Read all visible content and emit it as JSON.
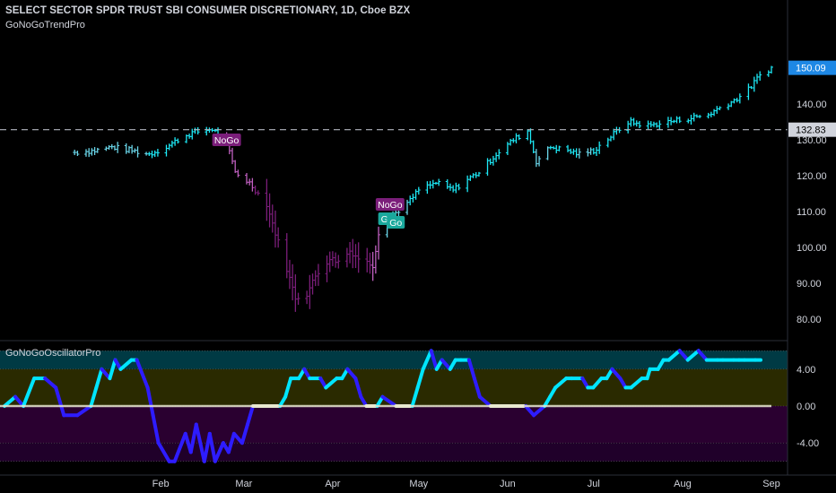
{
  "header": {
    "title": "SELECT SECTOR SPDR TRUST SBI CONSUMER DISCRETIONARY, 1D, Cboe BZX",
    "trend_indicator": "GoNoGoTrendPro",
    "oscillator_indicator": "GoNoGoOscillatorPro"
  },
  "colors": {
    "background": "#000000",
    "go_strong": "#1de9f6",
    "go_weak": "#6ad5e8",
    "nogo_strong": "#7b1e7a",
    "nogo_weak": "#c060c0",
    "neutral": "#f2f2d0",
    "osc_go": "#00e5ff",
    "osc_nogo": "#2e1cff",
    "osc_neutral": "#e8e8d0",
    "label_go": "#1aa89c",
    "label_nogo": "#7b1e7a",
    "last_price_box": "#1e88e5"
  },
  "chart_data": [
    {
      "type": "line",
      "subtype": "ohlc-bars",
      "title": "SELECT SECTOR SPDR TRUST SBI CONSUMER DISCRETIONARY, 1D, Cboe BZX",
      "xlabel": "",
      "ylabel": "",
      "x_tick_labels": [
        "Feb",
        "Mar",
        "Apr",
        "May",
        "Jun",
        "Jul",
        "Aug",
        "Sep"
      ],
      "y_ticks": [
        80,
        90,
        100,
        110,
        120,
        130,
        140
      ],
      "y_tick_labels": [
        "80.00",
        "90.00",
        "100.00",
        "110.00",
        "120.00",
        "130.00",
        "140.00"
      ],
      "ylim": [
        75,
        159
      ],
      "grid": false,
      "reference_line": {
        "value": 132.83,
        "label": "132.83",
        "style": "dashed"
      },
      "last_price": {
        "value": 150.09,
        "label": "150.09"
      },
      "signal_labels": [
        {
          "text": "NoGo",
          "date": "2020-02-24",
          "price": 130
        },
        {
          "text": "NoGo",
          "date": "2020-04-21",
          "price": 112
        },
        {
          "text": "Go",
          "date": "2020-04-20",
          "price": 108
        },
        {
          "text": "Go",
          "date": "2020-04-23",
          "price": 107
        }
      ],
      "series": [
        {
          "kind": "close_path",
          "points": [
            [
              "2020-01-02",
              126.5
            ],
            [
              "2020-01-09",
              127.0
            ],
            [
              "2020-01-15",
              128.0
            ],
            [
              "2020-01-22",
              127.0
            ],
            [
              "2020-01-28",
              126.0
            ],
            [
              "2020-02-03",
              128.0
            ],
            [
              "2020-02-07",
              130.0
            ],
            [
              "2020-02-12",
              132.0
            ],
            [
              "2020-02-19",
              133.0
            ],
            [
              "2020-02-24",
              129.0
            ],
            [
              "2020-02-27",
              121.0
            ],
            [
              "2020-03-03",
              118.0
            ],
            [
              "2020-03-09",
              112.0
            ],
            [
              "2020-03-12",
              104.0
            ],
            [
              "2020-03-16",
              94.0
            ],
            [
              "2020-03-19",
              86.0
            ],
            [
              "2020-03-23",
              87.0
            ],
            [
              "2020-03-26",
              92.0
            ],
            [
              "2020-03-31",
              97.0
            ],
            [
              "2020-04-03",
              96.0
            ],
            [
              "2020-04-07",
              99.0
            ],
            [
              "2020-04-10",
              97.0
            ],
            [
              "2020-04-15",
              95.0
            ],
            [
              "2020-04-17",
              104.0
            ],
            [
              "2020-04-22",
              109.0
            ],
            [
              "2020-04-28",
              113.0
            ],
            [
              "2020-05-01",
              116.0
            ],
            [
              "2020-05-07",
              118.0
            ],
            [
              "2020-05-13",
              116.0
            ],
            [
              "2020-05-18",
              119.0
            ],
            [
              "2020-05-22",
              121.0
            ],
            [
              "2020-05-28",
              126.0
            ],
            [
              "2020-06-03",
              130.0
            ],
            [
              "2020-06-08",
              132.5
            ],
            [
              "2020-06-11",
              124.0
            ],
            [
              "2020-06-16",
              128.0
            ],
            [
              "2020-06-22",
              127.0
            ],
            [
              "2020-06-26",
              126.0
            ],
            [
              "2020-07-01",
              127.0
            ],
            [
              "2020-07-07",
              131.0
            ],
            [
              "2020-07-13",
              135.0
            ],
            [
              "2020-07-20",
              134.0
            ],
            [
              "2020-07-27",
              135.0
            ],
            [
              "2020-08-03",
              136.0
            ],
            [
              "2020-08-10",
              137.0
            ],
            [
              "2020-08-14",
              139.0
            ],
            [
              "2020-08-19",
              141.0
            ],
            [
              "2020-08-24",
              144.0
            ],
            [
              "2020-08-28",
              148.0
            ],
            [
              "2020-09-01",
              150.09
            ]
          ],
          "colors_by_date": [
            [
              "2020-01-02",
              "go_weak"
            ],
            [
              "2020-01-28",
              "go_strong"
            ],
            [
              "2020-02-24",
              "nogo_weak"
            ],
            [
              "2020-03-05",
              "nogo_strong"
            ],
            [
              "2020-04-15",
              "nogo_weak"
            ],
            [
              "2020-04-20",
              "go_weak"
            ],
            [
              "2020-04-28",
              "go_strong"
            ],
            [
              "2020-06-11",
              "go_weak"
            ],
            [
              "2020-06-16",
              "go_strong"
            ],
            [
              "2020-06-26",
              "go_weak"
            ],
            [
              "2020-07-01",
              "go_strong"
            ]
          ]
        }
      ]
    },
    {
      "type": "line",
      "title": "GoNoGoOscillatorPro",
      "xlabel": "",
      "ylabel": "",
      "y_ticks": [
        -4,
        0,
        4
      ],
      "y_tick_labels": [
        "-4.00",
        "0.00",
        "4.00"
      ],
      "ylim": [
        -7,
        7
      ],
      "grid": false,
      "zones": [
        {
          "from": 4,
          "to": 6,
          "color": "#003a44"
        },
        {
          "from": 0,
          "to": 4,
          "color": "#2a2a00"
        },
        {
          "from": -4,
          "to": 0,
          "color": "#2a0030"
        },
        {
          "from": -6,
          "to": -4,
          "color": "#20002a"
        }
      ],
      "series": [
        {
          "name": "",
          "values": [
            [
              "2020-01-02",
              0
            ],
            [
              "2020-01-06",
              1
            ],
            [
              "2020-01-09",
              0
            ],
            [
              "2020-01-13",
              3
            ],
            [
              "2020-01-17",
              3
            ],
            [
              "2020-01-21",
              2
            ],
            [
              "2020-01-24",
              -1
            ],
            [
              "2020-01-29",
              -1
            ],
            [
              "2020-02-03",
              0
            ],
            [
              "2020-02-05",
              2
            ],
            [
              "2020-02-07",
              4
            ],
            [
              "2020-02-10",
              3
            ],
            [
              "2020-02-12",
              5
            ],
            [
              "2020-02-14",
              4
            ],
            [
              "2020-02-18",
              5
            ],
            [
              "2020-02-20",
              5
            ],
            [
              "2020-02-24",
              2
            ],
            [
              "2020-02-26",
              -1
            ],
            [
              "2020-02-28",
              -4
            ],
            [
              "2020-03-03",
              -6
            ],
            [
              "2020-03-05",
              -6
            ],
            [
              "2020-03-09",
              -3
            ],
            [
              "2020-03-11",
              -5
            ],
            [
              "2020-03-13",
              -2
            ],
            [
              "2020-03-16",
              -6
            ],
            [
              "2020-03-18",
              -3
            ],
            [
              "2020-03-20",
              -6
            ],
            [
              "2020-03-23",
              -4
            ],
            [
              "2020-03-25",
              -5
            ],
            [
              "2020-03-27",
              -3
            ],
            [
              "2020-03-30",
              -4
            ],
            [
              "2020-04-01",
              -2
            ],
            [
              "2020-04-03",
              0
            ],
            [
              "2020-04-07",
              0
            ],
            [
              "2020-04-13",
              0
            ],
            [
              "2020-04-15",
              1
            ],
            [
              "2020-04-17",
              3
            ],
            [
              "2020-04-20",
              3
            ],
            [
              "2020-04-22",
              4
            ],
            [
              "2020-04-24",
              3
            ],
            [
              "2020-04-28",
              3
            ],
            [
              "2020-04-30",
              2
            ],
            [
              "2020-05-04",
              3
            ],
            [
              "2020-05-06",
              3
            ],
            [
              "2020-05-08",
              4
            ],
            [
              "2020-05-11",
              3
            ],
            [
              "2020-05-13",
              1
            ],
            [
              "2020-05-15",
              0
            ],
            [
              "2020-05-19",
              0
            ],
            [
              "2020-05-21",
              1
            ],
            [
              "2020-05-26",
              0
            ],
            [
              "2020-05-28",
              0
            ],
            [
              "2020-06-01",
              0
            ],
            [
              "2020-06-03",
              2
            ],
            [
              "2020-06-05",
              4
            ],
            [
              "2020-06-08",
              6
            ],
            [
              "2020-06-10",
              4
            ],
            [
              "2020-06-12",
              5
            ],
            [
              "2020-06-15",
              4
            ],
            [
              "2020-06-17",
              5
            ],
            [
              "2020-06-19",
              5
            ],
            [
              "2020-06-22",
              5
            ],
            [
              "2020-06-24",
              3
            ],
            [
              "2020-06-26",
              1
            ],
            [
              "2020-06-30",
              0
            ],
            [
              "2020-07-02",
              0
            ],
            [
              "2020-07-07",
              0
            ],
            [
              "2020-07-13",
              0
            ],
            [
              "2020-07-16",
              -1
            ],
            [
              "2020-07-20",
              0
            ],
            [
              "2020-07-22",
              1
            ],
            [
              "2020-07-24",
              2
            ],
            [
              "2020-07-28",
              3
            ],
            [
              "2020-07-30",
              3
            ],
            [
              "2020-08-03",
              3
            ],
            [
              "2020-08-05",
              2
            ],
            [
              "2020-08-07",
              2
            ],
            [
              "2020-08-10",
              3
            ],
            [
              "2020-08-12",
              3
            ],
            [
              "2020-08-14",
              4
            ],
            [
              "2020-08-17",
              3
            ],
            [
              "2020-08-19",
              2
            ],
            [
              "2020-08-21",
              2
            ],
            [
              "2020-08-25",
              3
            ],
            [
              "2020-08-27",
              3
            ],
            [
              "2020-08-28",
              4
            ],
            [
              "2020-08-31",
              4
            ],
            [
              "2020-09-02",
              5
            ],
            [
              "2020-09-04",
              5
            ],
            [
              "2020-09-08",
              6
            ],
            [
              "2020-09-11",
              5
            ],
            [
              "2020-09-15",
              6
            ],
            [
              "2020-09-18",
              5
            ],
            [
              "2020-09-22",
              5
            ],
            [
              "2020-09-24",
              5
            ],
            [
              "2020-09-28",
              5
            ],
            [
              "2020-09-30",
              5
            ],
            [
              "2020-10-02",
              5
            ],
            [
              "2020-10-06",
              5
            ],
            [
              "2020-10-08",
              5
            ]
          ]
        }
      ]
    }
  ]
}
